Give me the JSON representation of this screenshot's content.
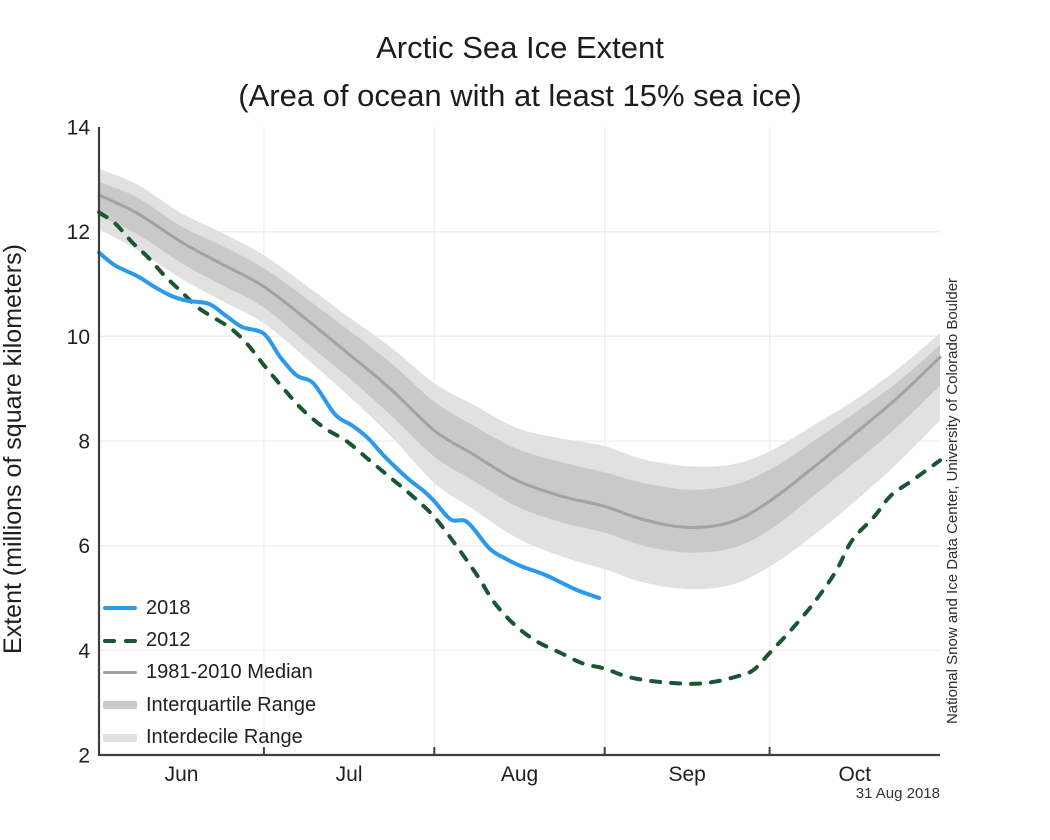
{
  "title": "Arctic Sea Ice Extent",
  "subtitle": "(Area of ocean with at least 15% sea ice)",
  "credit": "National Snow and Ice Data Center, University of Colorado Boulder",
  "date_label": "31 Aug 2018",
  "colors": {
    "line_2018": "#2b99ec",
    "line_2012": "#1a5632",
    "line_median": "#a2a2a2",
    "band_interquartile": "#c9c9c9",
    "band_interdecile": "#e1e1e1",
    "axis": "#404040",
    "grid": "#f0f0f0",
    "text": "#1f1f1f"
  },
  "legend": [
    {
      "label": "2018",
      "swatch": "line",
      "color": "#2b99ec"
    },
    {
      "label": "2012",
      "swatch": "dashed",
      "color": "#1a5632"
    },
    {
      "label": "1981-2010 Median",
      "swatch": "thin-line",
      "color": "#a2a2a2"
    },
    {
      "label": "Interquartile Range",
      "swatch": "band",
      "color": "#c9c9c9"
    },
    {
      "label": "Interdecile Range",
      "swatch": "band",
      "color": "#e1e1e1"
    }
  ],
  "chart_data": {
    "type": "line",
    "title": "Arctic Sea Ice Extent",
    "subtitle": "(Area of ocean with at least 15% sea ice)",
    "xlabel": "",
    "ylabel": "Extent (millions of square kilometers)",
    "units": "millions of square kilometers",
    "ylim": [
      2,
      14
    ],
    "y_ticks": [
      2,
      4,
      6,
      8,
      10,
      12,
      14
    ],
    "x_domain_days": [
      0,
      153
    ],
    "x_month_ticks": {
      "boundary_days": [
        30,
        61,
        92,
        122
      ],
      "label_days": [
        15,
        45.5,
        76.5,
        107,
        137.5
      ],
      "labels": [
        "Jun",
        "Jul",
        "Aug",
        "Sep",
        "Oct"
      ]
    },
    "grid": true,
    "legend_position": "lower-left",
    "series": [
      {
        "name": "2018",
        "style": "solid",
        "color": "#2b99ec",
        "x_days": [
          0,
          3,
          7,
          10,
          13,
          16,
          20,
          23,
          26,
          30,
          33,
          36,
          39,
          43,
          46,
          49,
          52,
          56,
          59,
          61,
          64,
          67,
          71,
          74,
          77,
          81,
          84,
          87,
          91
        ],
        "values": [
          11.6,
          11.35,
          11.15,
          10.95,
          10.78,
          10.68,
          10.62,
          10.4,
          10.18,
          10.05,
          9.6,
          9.25,
          9.1,
          8.5,
          8.3,
          8.05,
          7.7,
          7.3,
          7.05,
          6.85,
          6.5,
          6.45,
          5.95,
          5.75,
          5.6,
          5.45,
          5.3,
          5.15,
          5.0
        ]
      },
      {
        "name": "2012",
        "style": "dashed",
        "color": "#1a5632",
        "x_days": [
          0,
          3,
          6,
          9,
          12,
          15,
          18,
          21,
          24,
          27,
          30,
          34,
          37,
          41,
          45,
          49,
          53,
          57,
          61,
          65,
          69,
          72,
          76,
          80,
          84,
          88,
          92,
          96,
          100,
          104,
          108,
          112,
          116,
          119,
          122,
          126,
          130,
          134,
          137,
          141,
          144,
          148,
          153
        ],
        "values": [
          12.37,
          12.15,
          11.8,
          11.5,
          11.15,
          10.85,
          10.55,
          10.35,
          10.15,
          9.85,
          9.45,
          8.95,
          8.6,
          8.25,
          8.0,
          7.65,
          7.3,
          6.95,
          6.55,
          6.0,
          5.4,
          4.9,
          4.45,
          4.15,
          3.95,
          3.75,
          3.65,
          3.5,
          3.42,
          3.38,
          3.36,
          3.4,
          3.5,
          3.62,
          3.95,
          4.4,
          4.9,
          5.5,
          6.1,
          6.55,
          6.95,
          7.25,
          7.63
        ]
      },
      {
        "name": "1981-2010 Median",
        "style": "solid",
        "color": "#a2a2a2",
        "x_days": [
          0,
          7,
          15,
          22,
          30,
          38,
          45,
          53,
          61,
          68,
          76,
          84,
          92,
          99,
          107,
          115,
          122,
          130,
          137,
          145,
          153
        ],
        "values": [
          12.7,
          12.35,
          11.8,
          11.4,
          10.95,
          10.3,
          9.7,
          9.0,
          8.2,
          7.75,
          7.25,
          6.95,
          6.75,
          6.5,
          6.35,
          6.45,
          6.85,
          7.5,
          8.1,
          8.8,
          9.6
        ]
      }
    ],
    "bands": [
      {
        "name": "Interdecile Range",
        "color": "#e1e1e1",
        "x_days": [
          0,
          7,
          15,
          22,
          30,
          38,
          45,
          53,
          61,
          68,
          76,
          84,
          92,
          99,
          107,
          115,
          122,
          130,
          137,
          145,
          153
        ],
        "upper": [
          13.2,
          12.9,
          12.35,
          12.0,
          11.55,
          10.95,
          10.4,
          9.8,
          9.1,
          8.7,
          8.25,
          8.05,
          7.9,
          7.65,
          7.52,
          7.55,
          7.8,
          8.3,
          8.75,
          9.35,
          10.06
        ],
        "lower": [
          12.05,
          11.65,
          11.1,
          10.7,
          10.25,
          9.55,
          8.9,
          8.1,
          7.2,
          6.7,
          6.15,
          5.8,
          5.55,
          5.3,
          5.17,
          5.25,
          5.6,
          6.2,
          6.8,
          7.55,
          8.4
        ]
      },
      {
        "name": "Interquartile Range",
        "color": "#c9c9c9",
        "x_days": [
          0,
          7,
          15,
          22,
          30,
          38,
          45,
          53,
          61,
          68,
          76,
          84,
          92,
          99,
          107,
          115,
          122,
          130,
          137,
          145,
          153
        ],
        "upper": [
          12.95,
          12.65,
          12.1,
          11.75,
          11.3,
          10.7,
          10.15,
          9.5,
          8.75,
          8.3,
          7.85,
          7.6,
          7.4,
          7.2,
          7.07,
          7.15,
          7.45,
          8.0,
          8.5,
          9.1,
          9.83
        ],
        "lower": [
          12.3,
          11.95,
          11.4,
          11.0,
          10.55,
          9.85,
          9.25,
          8.5,
          7.7,
          7.25,
          6.75,
          6.45,
          6.25,
          6.0,
          5.87,
          5.95,
          6.3,
          6.95,
          7.55,
          8.25,
          9.06
        ]
      }
    ]
  }
}
